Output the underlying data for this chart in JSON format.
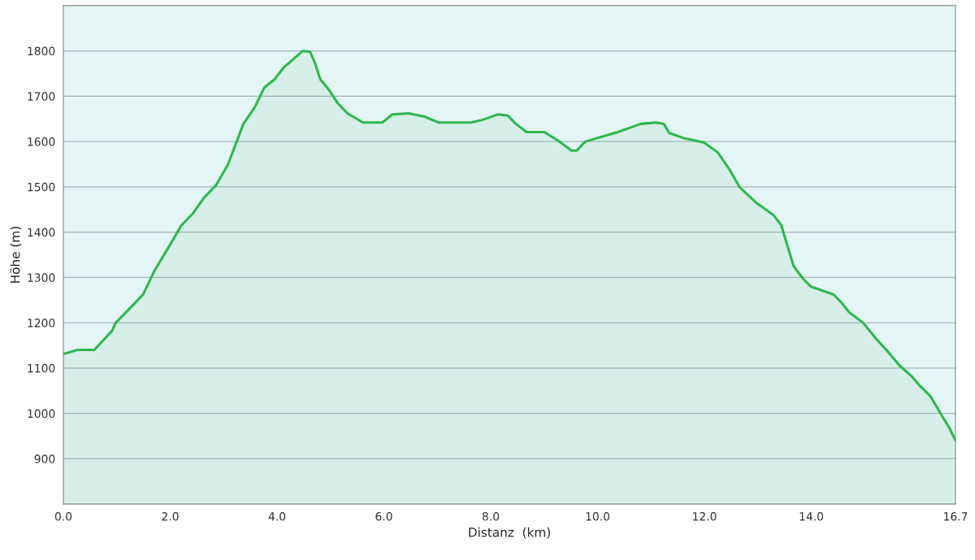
{
  "chart_data": {
    "type": "area",
    "xlabel": "Distanz  (km)",
    "ylabel": "Höhe (m)",
    "xlim": [
      0,
      16.7
    ],
    "ylim": [
      800,
      1900
    ],
    "xticks": [
      {
        "value": 0,
        "label": "0.0"
      },
      {
        "value": 2,
        "label": "2.0"
      },
      {
        "value": 4,
        "label": "4.0"
      },
      {
        "value": 6,
        "label": "6.0"
      },
      {
        "value": 8,
        "label": "8.0"
      },
      {
        "value": 10,
        "label": "10.0"
      },
      {
        "value": 12,
        "label": "12.0"
      },
      {
        "value": 14,
        "label": "14.0"
      },
      {
        "value": 16.7,
        "label": "16.7"
      }
    ],
    "yticks": [
      900,
      1000,
      1100,
      1200,
      1300,
      1400,
      1500,
      1600,
      1700,
      1800
    ],
    "grid": "y",
    "series": [
      {
        "color": "#2db84d",
        "x": [
          0,
          0.26,
          0.58,
          0.72,
          0.91,
          0.98,
          1.27,
          1.49,
          1.71,
          1.92,
          2.21,
          2.43,
          2.64,
          2.86,
          3.08,
          3.37,
          3.58,
          3.76,
          3.95,
          4.13,
          4.31,
          4.48,
          4.62,
          4.71,
          4.81,
          4.96,
          5.14,
          5.32,
          5.61,
          5.97,
          6.16,
          6.47,
          6.76,
          7.02,
          7.63,
          7.85,
          8.14,
          8.32,
          8.47,
          8.67,
          9.0,
          9.25,
          9.51,
          9.61,
          9.77,
          10.38,
          10.81,
          11.1,
          11.24,
          11.34,
          11.6,
          11.99,
          12.25,
          12.46,
          12.66,
          12.97,
          13.29,
          13.44,
          13.53,
          13.67,
          13.84,
          13.99,
          14.42,
          14.57,
          14.71,
          14.97,
          15.22,
          15.43,
          15.65,
          15.87,
          16.04,
          16.23,
          16.45,
          16.59,
          16.7
        ],
        "values": [
          1131,
          1140,
          1140,
          1158,
          1182,
          1200,
          1235,
          1262,
          1316,
          1357,
          1415,
          1442,
          1477,
          1504,
          1549,
          1639,
          1675,
          1719,
          1737,
          1764,
          1782,
          1800,
          1798,
          1773,
          1737,
          1716,
          1684,
          1662,
          1642,
          1642,
          1660,
          1662,
          1655,
          1642,
          1642,
          1648,
          1660,
          1657,
          1639,
          1621,
          1621,
          1603,
          1580,
          1580,
          1600,
          1621,
          1639,
          1642,
          1639,
          1619,
          1608,
          1598,
          1576,
          1540,
          1499,
          1465,
          1438,
          1415,
          1379,
          1325,
          1298,
          1280,
          1262,
          1244,
          1223,
          1200,
          1164,
          1137,
          1106,
          1083,
          1060,
          1038,
          994,
          967,
          940
        ]
      }
    ]
  }
}
